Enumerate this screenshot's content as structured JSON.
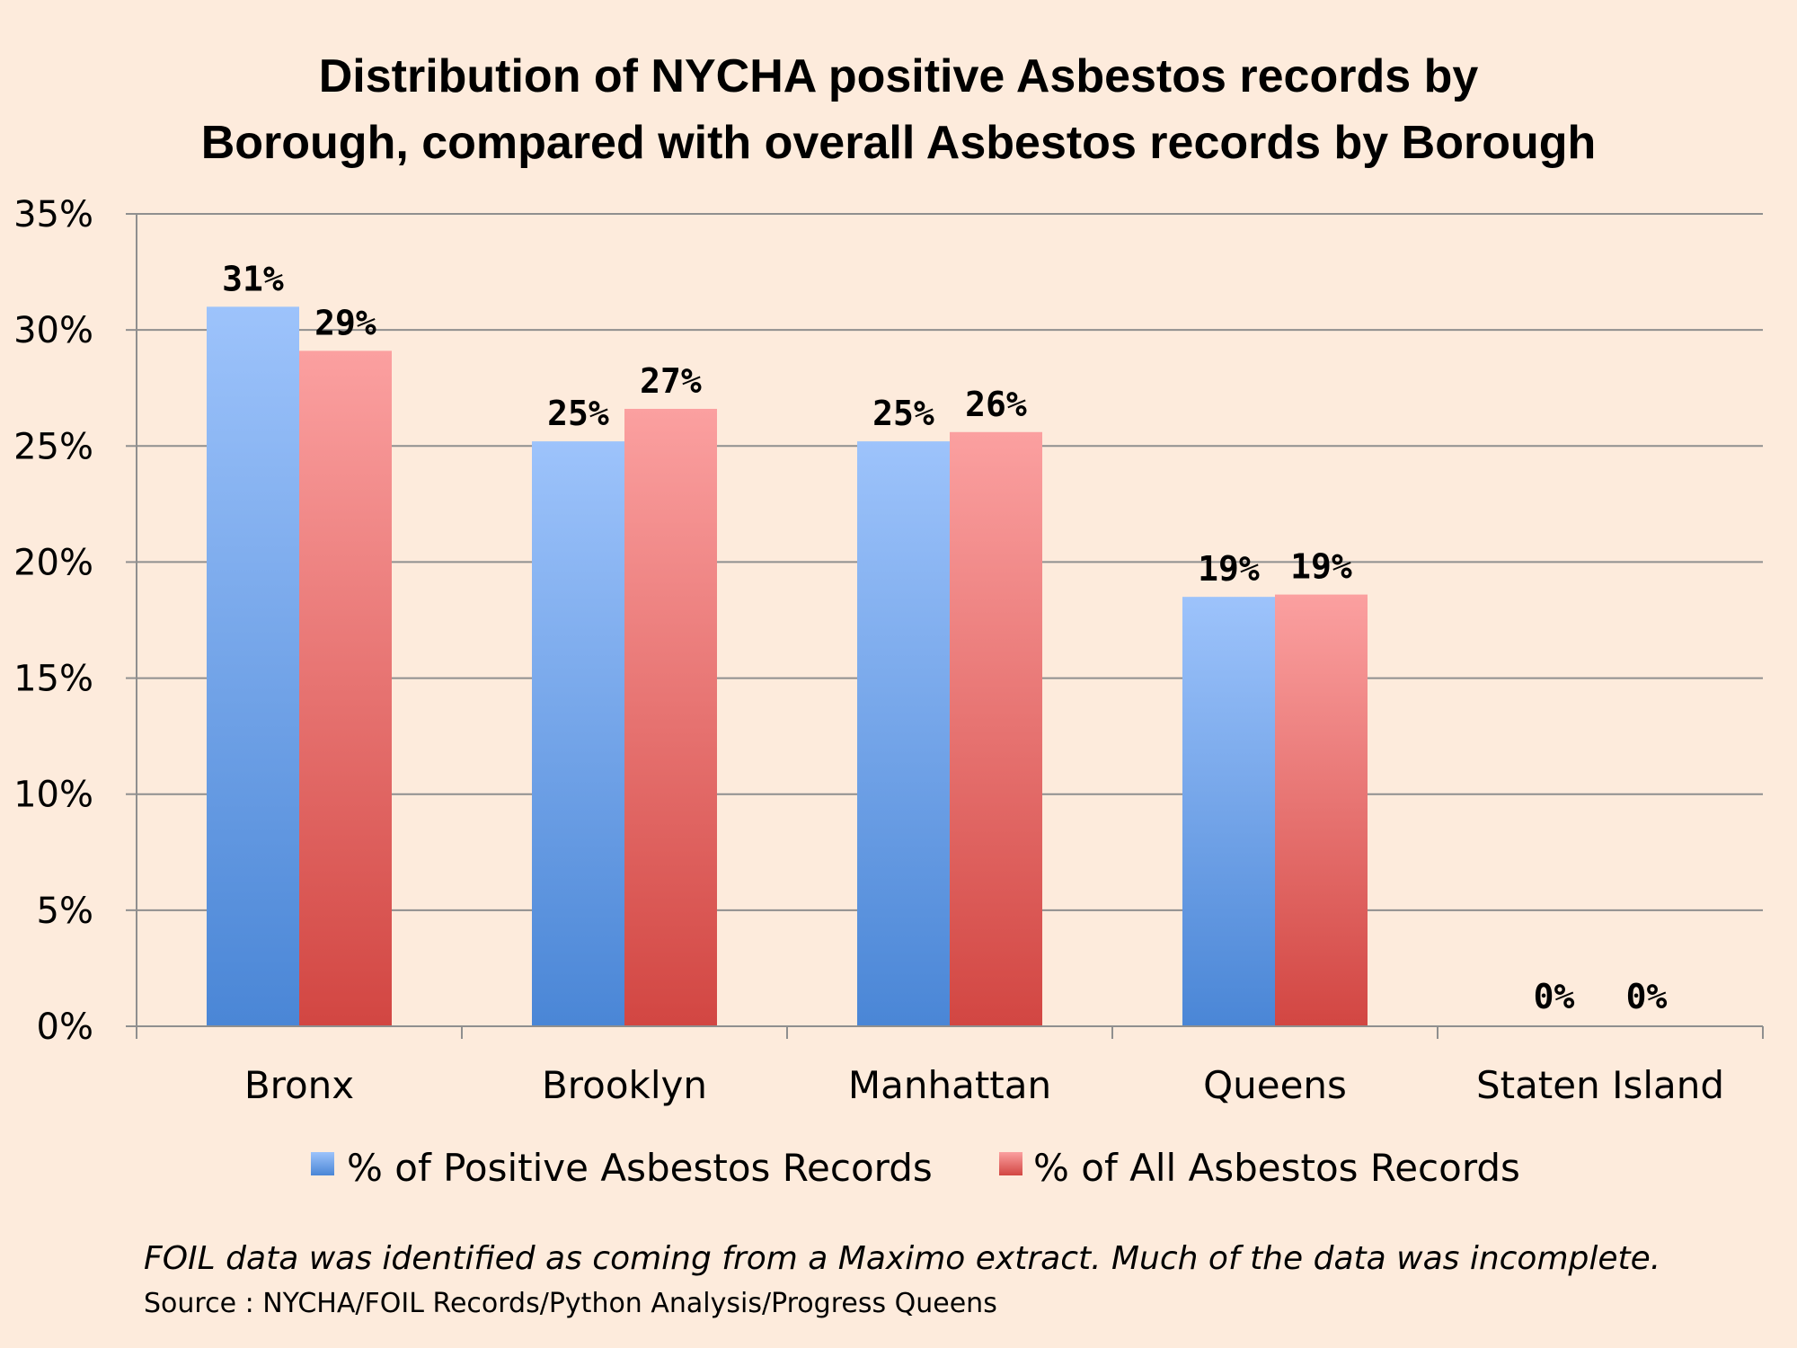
{
  "chart_data": {
    "type": "bar",
    "title_lines": [
      "Distribution of NYCHA positive Asbestos records by",
      "Borough, compared with overall Asbestos records by Borough"
    ],
    "categories": [
      "Bronx",
      "Brooklyn",
      "Manhattan",
      "Queens",
      "Staten Island"
    ],
    "series": [
      {
        "name": "% of Positive Asbestos Records",
        "values": [
          31,
          25.2,
          25.2,
          18.5,
          0
        ],
        "labels": [
          "31%",
          "25%",
          "25%",
          "19%",
          "0%"
        ],
        "color_top": "#9dc3fb",
        "color_bottom": "#4a86d6"
      },
      {
        "name": "% of All Asbestos Records",
        "values": [
          29.1,
          26.6,
          25.6,
          18.6,
          0
        ],
        "labels": [
          "29%",
          "27%",
          "26%",
          "19%",
          "0%"
        ],
        "color_top": "#fba0a0",
        "color_bottom": "#d24642"
      }
    ],
    "ylim": [
      0,
      35
    ],
    "y_ticks": [
      0,
      5,
      10,
      15,
      20,
      25,
      30,
      35
    ],
    "y_tick_labels": [
      "0%",
      "5%",
      "10%",
      "15%",
      "20%",
      "25%",
      "30%",
      "35%"
    ],
    "xlabel": "",
    "ylabel": "",
    "grid": true,
    "legend_position": "bottom"
  },
  "footnote": "FOIL data was identified as coming from a Maximo extract. Much of the data was incomplete.",
  "source": "Source : NYCHA/FOIL Records/Python Analysis/Progress Queens",
  "colors": {
    "background": "#fdebdc",
    "gridline": "#8f8f8f",
    "axis": "#8f8f8f"
  }
}
